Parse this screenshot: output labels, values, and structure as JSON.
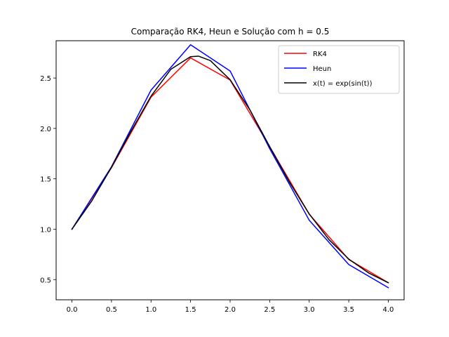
{
  "chart_data": {
    "type": "line",
    "title": "Comparação RK4, Heun e Solução com h = 0.5",
    "xlabel": "",
    "ylabel": "",
    "xlim": [
      -0.2,
      4.2
    ],
    "ylim": [
      0.3,
      2.87
    ],
    "xticks": [
      0.0,
      0.5,
      1.0,
      1.5,
      2.0,
      2.5,
      3.0,
      3.5,
      4.0
    ],
    "xtick_labels": [
      "0.0",
      "0.5",
      "1.0",
      "1.5",
      "2.0",
      "2.5",
      "3.0",
      "3.5",
      "4.0"
    ],
    "yticks": [
      0.5,
      1.0,
      1.5,
      2.0,
      2.5
    ],
    "ytick_labels": [
      "0.5",
      "1.0",
      "1.5",
      "2.0",
      "2.5"
    ],
    "grid": false,
    "legend_position": "top-right",
    "series": [
      {
        "name": "RK4",
        "color": "#ff0000",
        "x": [
          0.0,
          0.5,
          1.0,
          1.5,
          2.0,
          2.5,
          3.0,
          3.5,
          4.0
        ],
        "y": [
          1.0,
          1.61,
          2.31,
          2.7,
          2.48,
          1.82,
          1.15,
          0.7,
          0.47
        ]
      },
      {
        "name": "Heun",
        "color": "#0000ff",
        "x": [
          0.0,
          0.5,
          1.0,
          1.5,
          2.0,
          2.5,
          3.0,
          3.5,
          4.0
        ],
        "y": [
          1.0,
          1.62,
          2.38,
          2.83,
          2.57,
          1.8,
          1.09,
          0.65,
          0.42
        ]
      },
      {
        "name": "x(t) = exp(sin(t))",
        "color": "#000000",
        "x": [
          0.0,
          0.25,
          0.5,
          0.75,
          1.0,
          1.25,
          1.5,
          1.6,
          1.75,
          2.0,
          2.25,
          2.5,
          2.75,
          3.0,
          3.25,
          3.5,
          3.75,
          4.0
        ],
        "y": [
          1.0,
          1.28,
          1.615,
          1.976,
          2.32,
          2.586,
          2.712,
          2.717,
          2.673,
          2.483,
          2.184,
          1.82,
          1.468,
          1.152,
          0.897,
          0.704,
          0.567,
          0.469
        ]
      }
    ]
  }
}
